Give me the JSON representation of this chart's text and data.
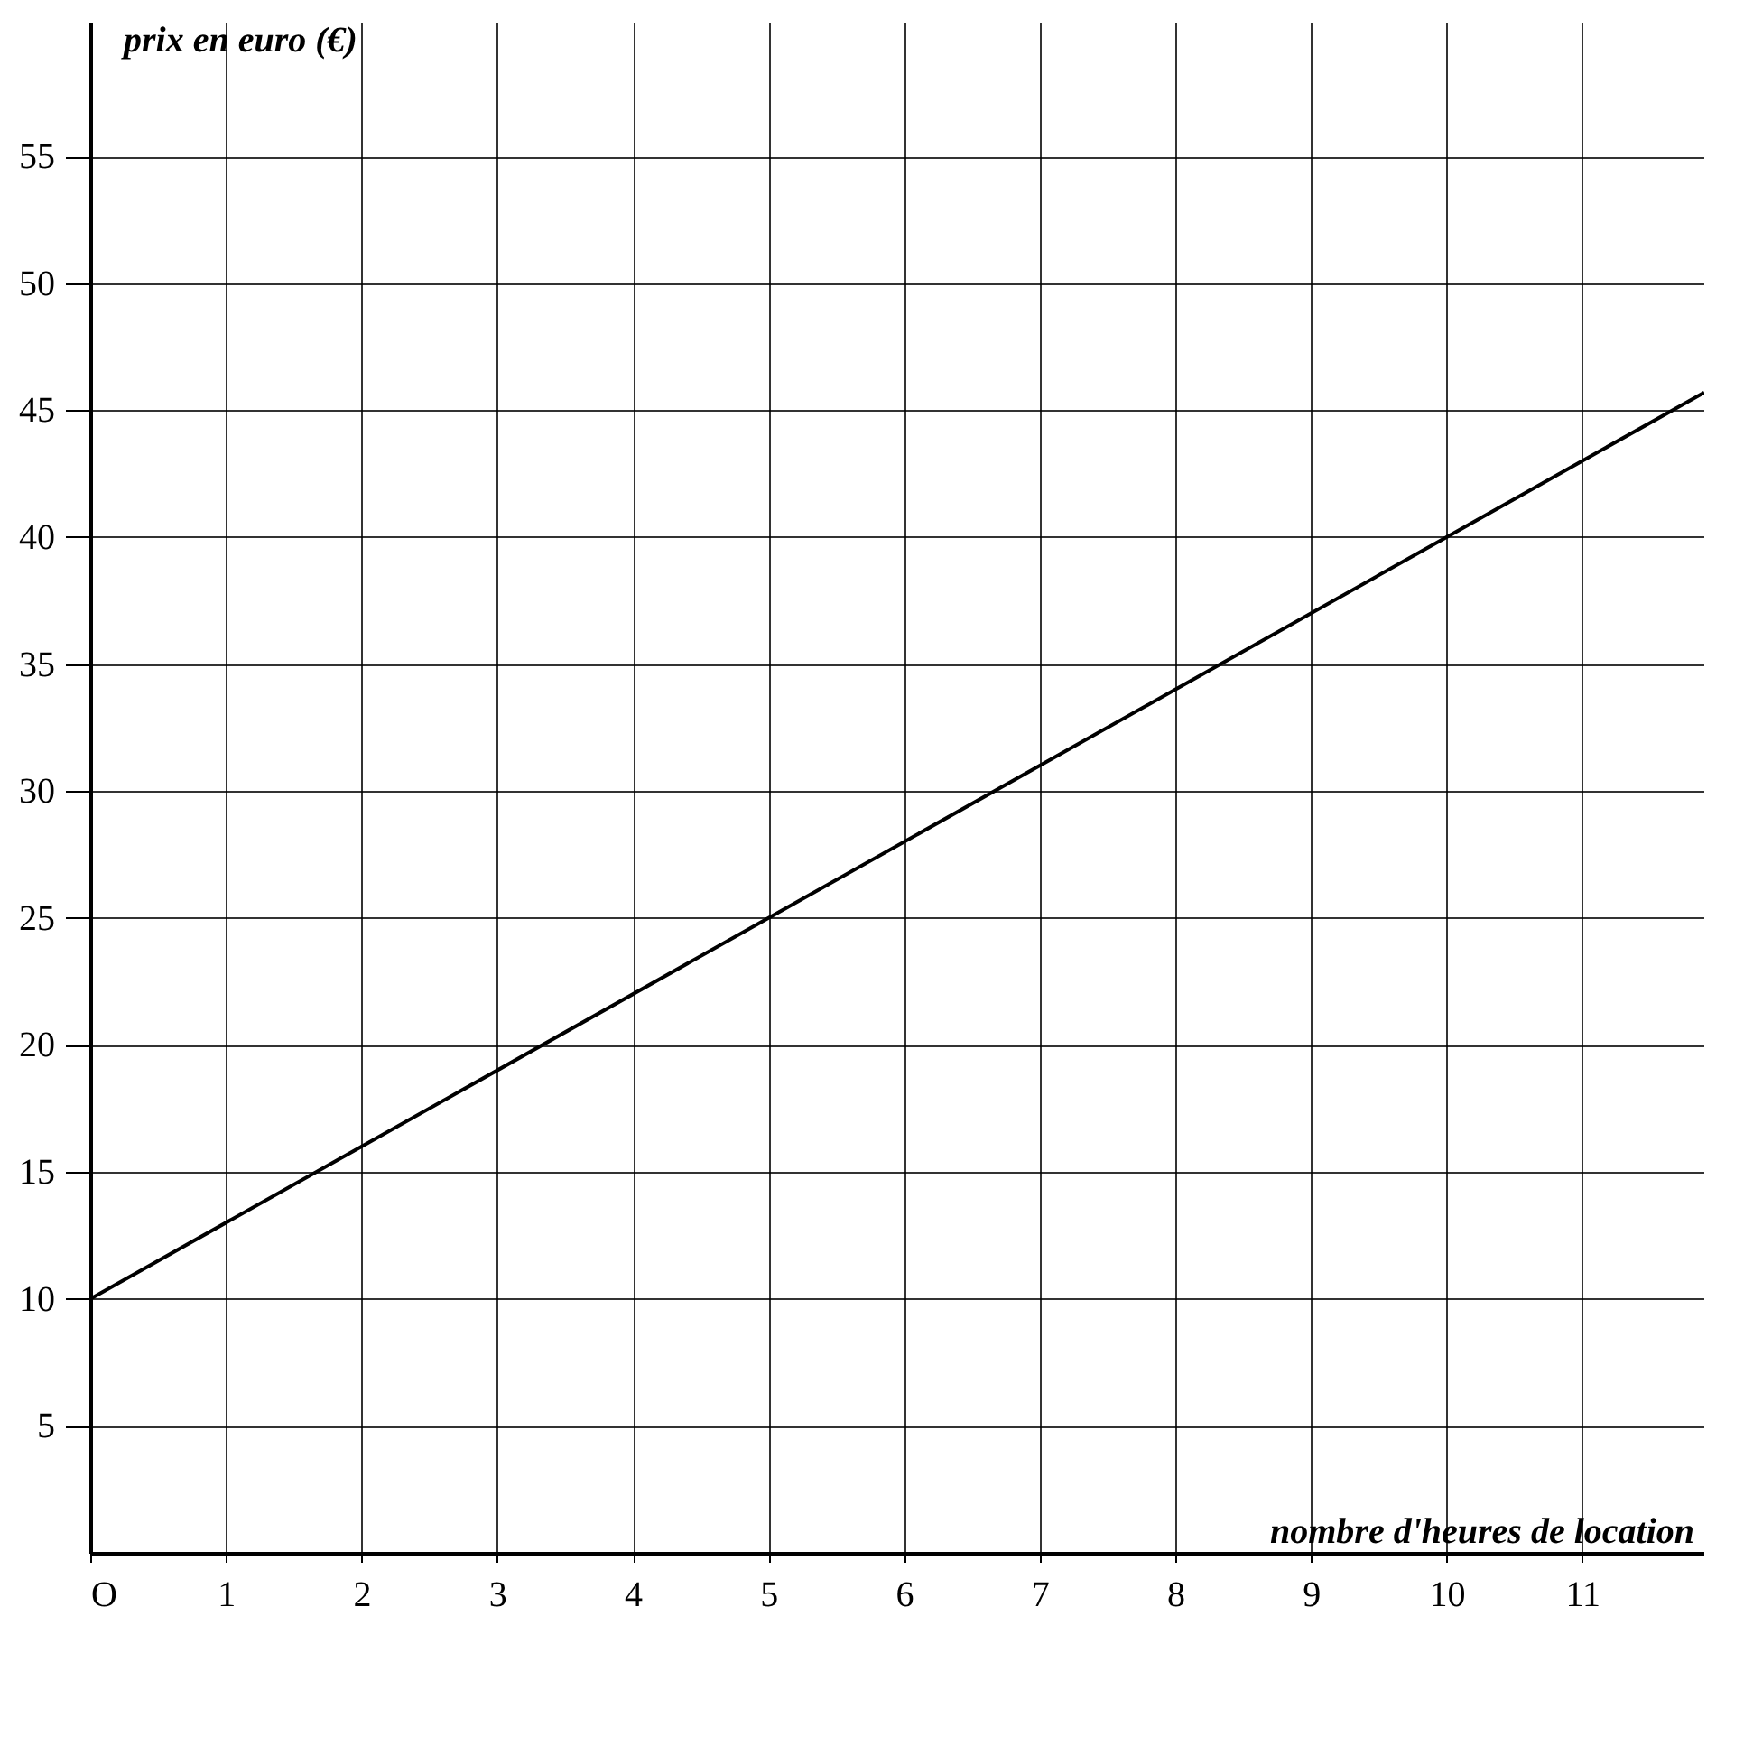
{
  "chart_data": {
    "type": "line",
    "xlabel": "nombre d'heures de location",
    "ylabel": "prix en euro (€)",
    "x": [
      0,
      10,
      11.9
    ],
    "series": [
      {
        "color": "#000000",
        "values": [
          10,
          40,
          45.7
        ]
      }
    ],
    "xlim": [
      0,
      11.9
    ],
    "ylim": [
      0,
      60.3
    ],
    "xticks": [
      {
        "value": 0,
        "label": "O"
      },
      1,
      2,
      3,
      4,
      5,
      6,
      7,
      8,
      9,
      10,
      11
    ],
    "yticks": [
      5,
      10,
      15,
      20,
      25,
      30,
      35,
      40,
      45,
      50,
      55
    ],
    "grid": true,
    "marker": "none",
    "line_style": "solid"
  }
}
